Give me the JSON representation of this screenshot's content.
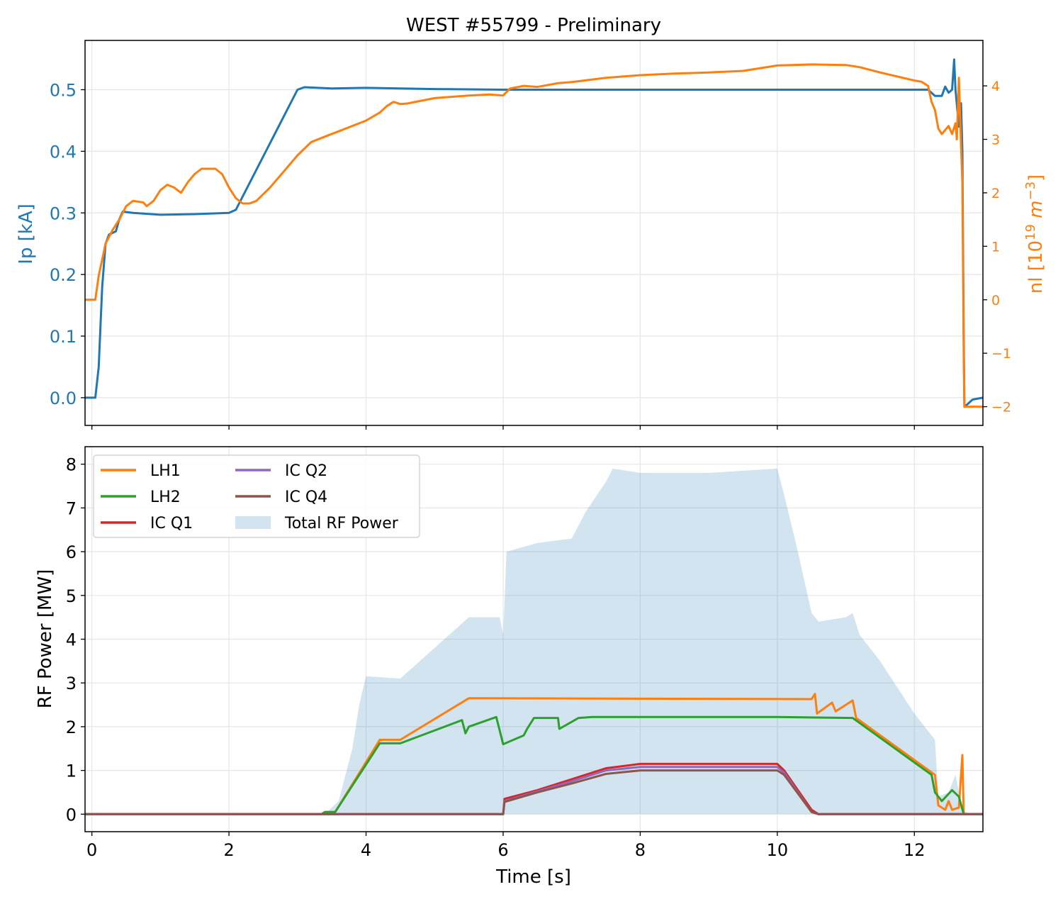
{
  "chart_data": [
    {
      "type": "line",
      "title": "WEST #55799 - Preliminary",
      "xlabel": "",
      "ylabel": "Ip [kA]",
      "y2label_parts": {
        "base": "nl [10",
        "sup1": "19",
        "mid": " m",
        "sup2": "−3",
        "end": "]"
      },
      "xlim": [
        -0.1,
        13.0
      ],
      "ylim": [
        -0.045,
        0.58
      ],
      "y2lim": [
        -2.35,
        4.85
      ],
      "xticks": [
        0,
        2,
        4,
        6,
        8,
        10,
        12
      ],
      "yticks": [
        0.0,
        0.1,
        0.2,
        0.3,
        0.4,
        0.5
      ],
      "ytick_labels": [
        "0.0",
        "0.1",
        "0.2",
        "0.3",
        "0.4",
        "0.5"
      ],
      "y2ticks": [
        -2,
        -1,
        0,
        1,
        2,
        3,
        4
      ],
      "y2tick_labels": [
        "−2",
        "−1",
        "0",
        "1",
        "2",
        "3",
        "4"
      ],
      "grid": true,
      "series": [
        {
          "name": "Ip",
          "axis": "left",
          "color": "#1f77b4",
          "points": [
            [
              -0.1,
              0.0
            ],
            [
              0.05,
              0.0
            ],
            [
              0.1,
              0.05
            ],
            [
              0.15,
              0.18
            ],
            [
              0.2,
              0.25
            ],
            [
              0.25,
              0.265
            ],
            [
              0.35,
              0.27
            ],
            [
              0.4,
              0.29
            ],
            [
              0.45,
              0.302
            ],
            [
              0.6,
              0.3
            ],
            [
              1.0,
              0.297
            ],
            [
              1.5,
              0.298
            ],
            [
              2.0,
              0.3
            ],
            [
              2.1,
              0.305
            ],
            [
              3.0,
              0.5
            ],
            [
              3.1,
              0.504
            ],
            [
              3.5,
              0.502
            ],
            [
              4.0,
              0.503
            ],
            [
              5.0,
              0.501
            ],
            [
              6.0,
              0.5
            ],
            [
              7.0,
              0.5
            ],
            [
              8.0,
              0.5
            ],
            [
              9.0,
              0.5
            ],
            [
              10.0,
              0.5
            ],
            [
              11.0,
              0.5
            ],
            [
              12.0,
              0.5
            ],
            [
              12.2,
              0.5
            ],
            [
              12.3,
              0.49
            ],
            [
              12.4,
              0.49
            ],
            [
              12.45,
              0.505
            ],
            [
              12.5,
              0.495
            ],
            [
              12.55,
              0.5
            ],
            [
              12.58,
              0.549
            ],
            [
              12.6,
              0.5
            ],
            [
              12.65,
              0.44
            ],
            [
              12.68,
              0.478
            ],
            [
              12.7,
              0.4
            ],
            [
              12.72,
              0.1
            ],
            [
              12.73,
              -0.015
            ],
            [
              12.78,
              -0.01
            ],
            [
              12.85,
              -0.003
            ],
            [
              13.0,
              0.0
            ]
          ]
        },
        {
          "name": "nl",
          "axis": "right",
          "color": "#ff7f0e",
          "points": [
            [
              -0.1,
              0.0
            ],
            [
              0.05,
              0.0
            ],
            [
              0.1,
              0.45
            ],
            [
              0.15,
              0.75
            ],
            [
              0.2,
              1.05
            ],
            [
              0.3,
              1.3
            ],
            [
              0.4,
              1.5
            ],
            [
              0.5,
              1.75
            ],
            [
              0.6,
              1.85
            ],
            [
              0.75,
              1.82
            ],
            [
              0.8,
              1.75
            ],
            [
              0.9,
              1.85
            ],
            [
              1.0,
              2.05
            ],
            [
              1.1,
              2.15
            ],
            [
              1.2,
              2.1
            ],
            [
              1.3,
              2.0
            ],
            [
              1.4,
              2.2
            ],
            [
              1.5,
              2.35
            ],
            [
              1.6,
              2.45
            ],
            [
              1.7,
              2.45
            ],
            [
              1.8,
              2.45
            ],
            [
              1.9,
              2.35
            ],
            [
              2.0,
              2.1
            ],
            [
              2.1,
              1.9
            ],
            [
              2.2,
              1.8
            ],
            [
              2.3,
              1.8
            ],
            [
              2.4,
              1.85
            ],
            [
              2.6,
              2.1
            ],
            [
              2.8,
              2.4
            ],
            [
              3.0,
              2.7
            ],
            [
              3.2,
              2.95
            ],
            [
              3.4,
              3.05
            ],
            [
              3.6,
              3.15
            ],
            [
              3.8,
              3.25
            ],
            [
              4.0,
              3.35
            ],
            [
              4.2,
              3.5
            ],
            [
              4.3,
              3.62
            ],
            [
              4.4,
              3.7
            ],
            [
              4.5,
              3.66
            ],
            [
              4.6,
              3.67
            ],
            [
              5.0,
              3.77
            ],
            [
              5.5,
              3.82
            ],
            [
              5.8,
              3.84
            ],
            [
              6.0,
              3.82
            ],
            [
              6.1,
              3.95
            ],
            [
              6.3,
              4.0
            ],
            [
              6.5,
              3.98
            ],
            [
              6.8,
              4.05
            ],
            [
              7.0,
              4.07
            ],
            [
              7.5,
              4.15
            ],
            [
              8.0,
              4.2
            ],
            [
              8.5,
              4.23
            ],
            [
              9.0,
              4.25
            ],
            [
              9.5,
              4.28
            ],
            [
              10.0,
              4.38
            ],
            [
              10.5,
              4.4
            ],
            [
              11.0,
              4.39
            ],
            [
              11.2,
              4.35
            ],
            [
              11.5,
              4.25
            ],
            [
              12.0,
              4.1
            ],
            [
              12.1,
              4.08
            ],
            [
              12.2,
              4.0
            ],
            [
              12.25,
              3.7
            ],
            [
              12.3,
              3.55
            ],
            [
              12.35,
              3.2
            ],
            [
              12.4,
              3.1
            ],
            [
              12.5,
              3.25
            ],
            [
              12.55,
              3.1
            ],
            [
              12.6,
              3.3
            ],
            [
              12.62,
              3.0
            ],
            [
              12.65,
              4.15
            ],
            [
              12.68,
              2.9
            ],
            [
              12.7,
              2.2
            ],
            [
              12.72,
              -1.0
            ],
            [
              12.73,
              -2.0
            ],
            [
              12.8,
              -2.0
            ],
            [
              13.0,
              -2.0
            ]
          ]
        }
      ]
    },
    {
      "type": "line",
      "title": "",
      "xlabel": "Time [s]",
      "ylabel": "RF Power [MW]",
      "xlim": [
        -0.1,
        13.0
      ],
      "ylim": [
        -0.4,
        8.4
      ],
      "xticks": [
        0,
        2,
        4,
        6,
        8,
        10,
        12
      ],
      "yticks": [
        0,
        1,
        2,
        3,
        4,
        5,
        6,
        7,
        8
      ],
      "grid": true,
      "legend": {
        "placement": "top-left",
        "columns": 2
      },
      "series": [
        {
          "name": "Total RF Power",
          "kind": "area",
          "color": "#1f77b4",
          "opacity": 0.2,
          "points": [
            [
              -0.1,
              0.0
            ],
            [
              3.4,
              0.0
            ],
            [
              3.6,
              0.3
            ],
            [
              3.8,
              1.5
            ],
            [
              3.9,
              2.5
            ],
            [
              4.0,
              3.15
            ],
            [
              4.5,
              3.1
            ],
            [
              5.0,
              3.8
            ],
            [
              5.5,
              4.5
            ],
            [
              5.95,
              4.5
            ],
            [
              6.0,
              4.1
            ],
            [
              6.05,
              6.0
            ],
            [
              6.5,
              6.2
            ],
            [
              7.0,
              6.3
            ],
            [
              7.2,
              6.9
            ],
            [
              7.5,
              7.6
            ],
            [
              7.6,
              7.9
            ],
            [
              8.0,
              7.8
            ],
            [
              9.0,
              7.8
            ],
            [
              10.0,
              7.9
            ],
            [
              10.1,
              7.3
            ],
            [
              10.3,
              6.0
            ],
            [
              10.5,
              4.6
            ],
            [
              10.6,
              4.4
            ],
            [
              11.0,
              4.5
            ],
            [
              11.1,
              4.6
            ],
            [
              11.2,
              4.1
            ],
            [
              11.5,
              3.5
            ],
            [
              12.0,
              2.3
            ],
            [
              12.3,
              1.7
            ],
            [
              12.35,
              0.4
            ],
            [
              12.5,
              0.5
            ],
            [
              12.6,
              0.9
            ],
            [
              12.7,
              0.1
            ],
            [
              12.8,
              0.0
            ],
            [
              13.0,
              0.0
            ]
          ]
        },
        {
          "name": "LH1",
          "color": "#ff7f0e",
          "points": [
            [
              -0.1,
              0.0
            ],
            [
              3.35,
              0.0
            ],
            [
              3.4,
              0.05
            ],
            [
              3.55,
              0.05
            ],
            [
              4.2,
              1.7
            ],
            [
              4.5,
              1.7
            ],
            [
              5.5,
              2.65
            ],
            [
              10.5,
              2.63
            ],
            [
              10.55,
              2.75
            ],
            [
              10.58,
              2.3
            ],
            [
              10.8,
              2.55
            ],
            [
              10.85,
              2.35
            ],
            [
              11.0,
              2.5
            ],
            [
              11.1,
              2.6
            ],
            [
              11.15,
              2.2
            ],
            [
              12.3,
              0.9
            ],
            [
              12.35,
              0.2
            ],
            [
              12.45,
              0.1
            ],
            [
              12.5,
              0.3
            ],
            [
              12.55,
              0.1
            ],
            [
              12.65,
              0.15
            ],
            [
              12.7,
              1.35
            ],
            [
              12.72,
              0.0
            ],
            [
              13.0,
              0.0
            ]
          ]
        },
        {
          "name": "LH2",
          "color": "#2ca02c",
          "points": [
            [
              -0.1,
              0.0
            ],
            [
              3.35,
              0.0
            ],
            [
              3.4,
              0.05
            ],
            [
              3.55,
              0.05
            ],
            [
              4.2,
              1.62
            ],
            [
              4.5,
              1.62
            ],
            [
              5.4,
              2.15
            ],
            [
              5.45,
              1.85
            ],
            [
              5.5,
              2.0
            ],
            [
              5.9,
              2.22
            ],
            [
              6.0,
              1.6
            ],
            [
              6.3,
              1.8
            ],
            [
              6.35,
              1.95
            ],
            [
              6.45,
              2.2
            ],
            [
              6.6,
              2.2
            ],
            [
              6.8,
              2.2
            ],
            [
              6.82,
              1.95
            ],
            [
              7.1,
              2.2
            ],
            [
              7.3,
              2.22
            ],
            [
              10.0,
              2.22
            ],
            [
              11.1,
              2.2
            ],
            [
              12.25,
              0.9
            ],
            [
              12.3,
              0.5
            ],
            [
              12.4,
              0.3
            ],
            [
              12.55,
              0.55
            ],
            [
              12.65,
              0.4
            ],
            [
              12.72,
              0.0
            ],
            [
              13.0,
              0.0
            ]
          ]
        },
        {
          "name": "IC Q1",
          "color": "#d62728",
          "points": [
            [
              -0.1,
              0.0
            ],
            [
              6.0,
              0.0
            ],
            [
              6.02,
              0.35
            ],
            [
              6.5,
              0.55
            ],
            [
              7.0,
              0.8
            ],
            [
              7.5,
              1.05
            ],
            [
              8.0,
              1.15
            ],
            [
              9.0,
              1.15
            ],
            [
              10.0,
              1.15
            ],
            [
              10.1,
              1.0
            ],
            [
              10.5,
              0.1
            ],
            [
              10.6,
              0.0
            ],
            [
              13.0,
              0.0
            ]
          ]
        },
        {
          "name": "IC Q2",
          "color": "#9467bd",
          "points": [
            [
              -0.1,
              0.0
            ],
            [
              6.0,
              0.0
            ],
            [
              6.02,
              0.3
            ],
            [
              6.5,
              0.52
            ],
            [
              7.0,
              0.75
            ],
            [
              7.5,
              1.0
            ],
            [
              8.0,
              1.08
            ],
            [
              9.0,
              1.08
            ],
            [
              10.0,
              1.08
            ],
            [
              10.1,
              0.95
            ],
            [
              10.5,
              0.05
            ],
            [
              10.6,
              0.0
            ],
            [
              13.0,
              0.0
            ]
          ]
        },
        {
          "name": "IC Q4",
          "color": "#8c564b",
          "points": [
            [
              -0.1,
              0.0
            ],
            [
              6.0,
              0.0
            ],
            [
              6.02,
              0.28
            ],
            [
              6.5,
              0.5
            ],
            [
              7.0,
              0.7
            ],
            [
              7.5,
              0.92
            ],
            [
              8.0,
              1.0
            ],
            [
              9.0,
              1.0
            ],
            [
              10.0,
              1.0
            ],
            [
              10.1,
              0.9
            ],
            [
              10.5,
              0.05
            ],
            [
              10.6,
              0.0
            ],
            [
              13.0,
              0.0
            ]
          ]
        }
      ]
    }
  ]
}
